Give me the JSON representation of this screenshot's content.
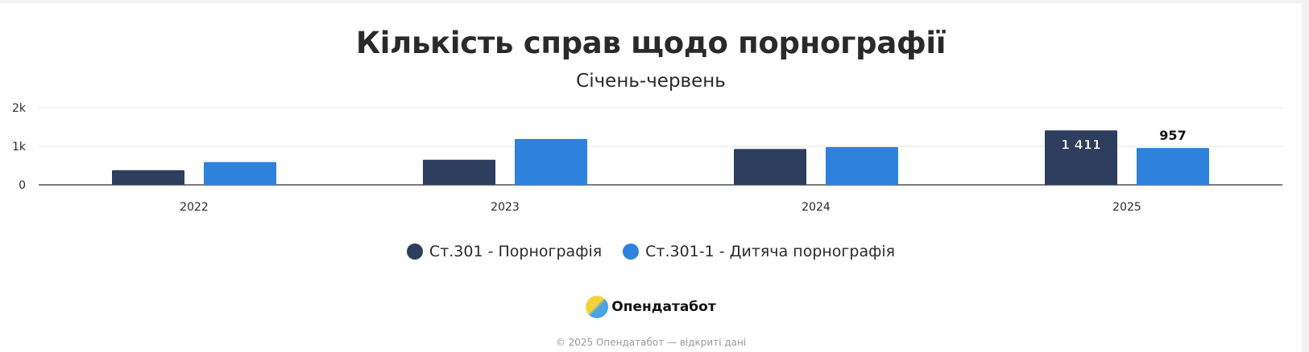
{
  "chart_data": {
    "type": "bar",
    "title": "Кількість справ щодо порнографії",
    "subtitle": "Січень-червень",
    "categories": [
      "2022",
      "2023",
      "2024",
      "2025"
    ],
    "series": [
      {
        "name": "Ст.301 - Порнографія",
        "color": "#2d3e5e",
        "values": [
          380,
          650,
          930,
          1411
        ]
      },
      {
        "name": "Ст.301-1 - Дитяча порнографія",
        "color": "#2e82dc",
        "values": [
          590,
          1190,
          980,
          957
        ]
      }
    ],
    "data_labels": [
      {
        "series": 0,
        "category": "2025",
        "text": "1 411"
      },
      {
        "series": 1,
        "category": "2025",
        "text": "957"
      }
    ],
    "yticks": [
      "0",
      "1k",
      "2k"
    ],
    "ytick_values": [
      0,
      1000,
      2000
    ],
    "ylim": [
      0,
      2000
    ],
    "grid": true,
    "legend_position": "bottom"
  },
  "brand": {
    "name": "Опендатабот",
    "logo": "opendatabot-logo-icon"
  },
  "footer": {
    "text": "© 2025 Опендатабот — відкриті дані"
  }
}
